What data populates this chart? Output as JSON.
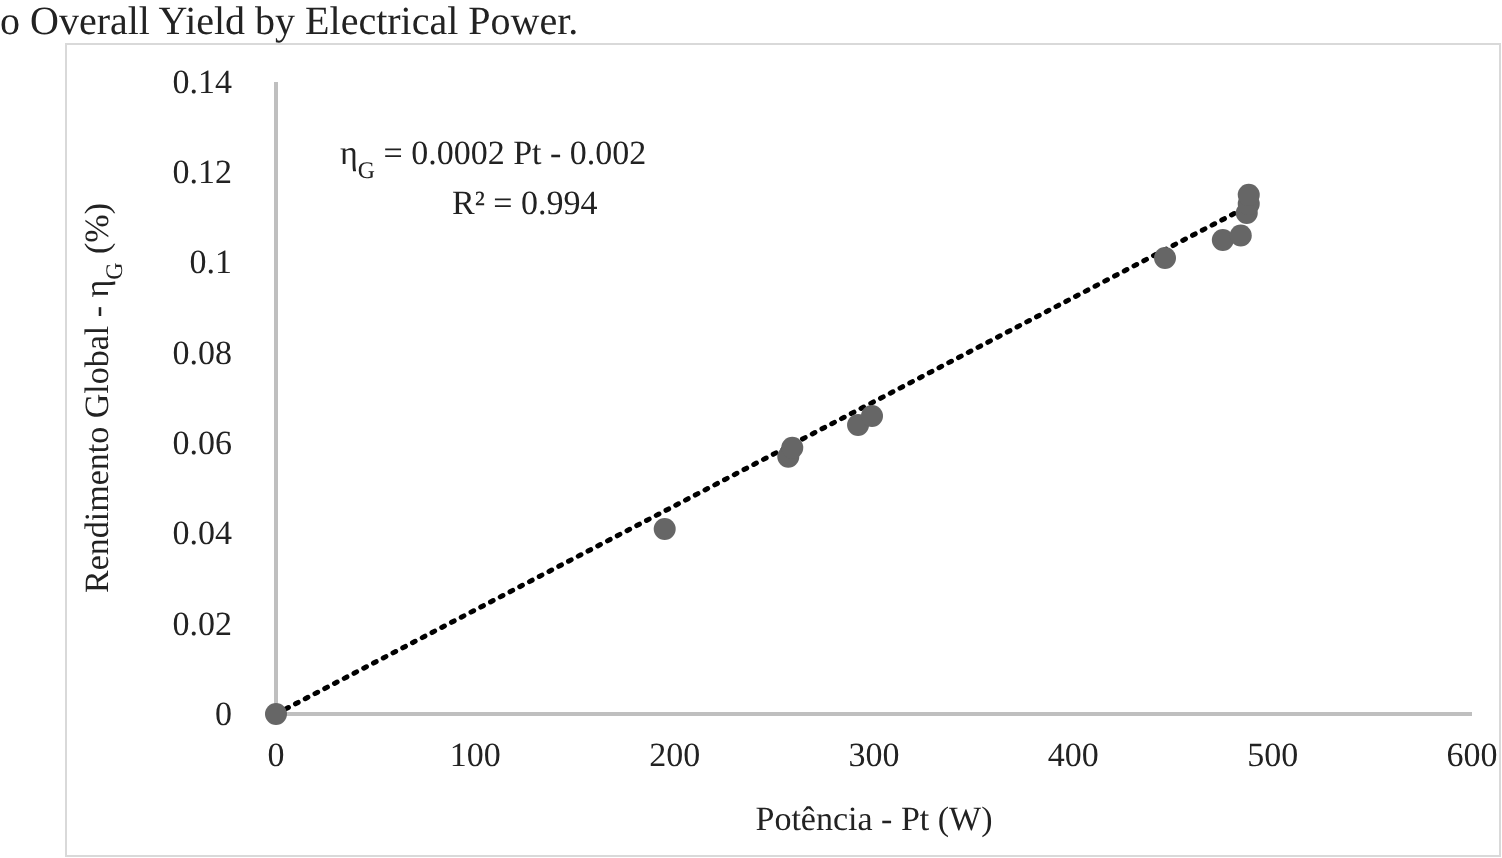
{
  "chart_data": {
    "type": "scatter",
    "title": "o Overall Yield by Electrical Power.",
    "xlabel": "Potência - Pt (W)",
    "ylabel": "Rendimento Global - η$_{G}$  (%)",
    "annotations": [
      "η$_{G}$ = 0.0002 Pt - 0.002",
      "R² = 0.994"
    ],
    "xlim": [
      0,
      600
    ],
    "xticks": [
      0,
      100,
      200,
      300,
      400,
      500,
      600
    ],
    "ylim": [
      0,
      0.14
    ],
    "yticks": [
      0,
      0.02,
      0.04,
      0.06,
      0.08,
      0.1,
      0.12,
      0.14
    ],
    "grid": false,
    "marker": "circle",
    "series": [
      {
        "color": "#666666",
        "x": [
          0,
          195,
          257,
          259,
          292,
          299,
          446,
          475,
          484,
          487,
          488,
          488
        ],
        "values": [
          0,
          0.041,
          0.057,
          0.059,
          0.064,
          0.066,
          0.101,
          0.105,
          0.106,
          0.111,
          0.113,
          0.115
        ]
      },
      {
        "type": "line",
        "color": "#000000",
        "line_style": "dotted",
        "marker": "none",
        "x": [
          0,
          490
        ],
        "values": [
          0,
          0.113
        ]
      }
    ]
  }
}
